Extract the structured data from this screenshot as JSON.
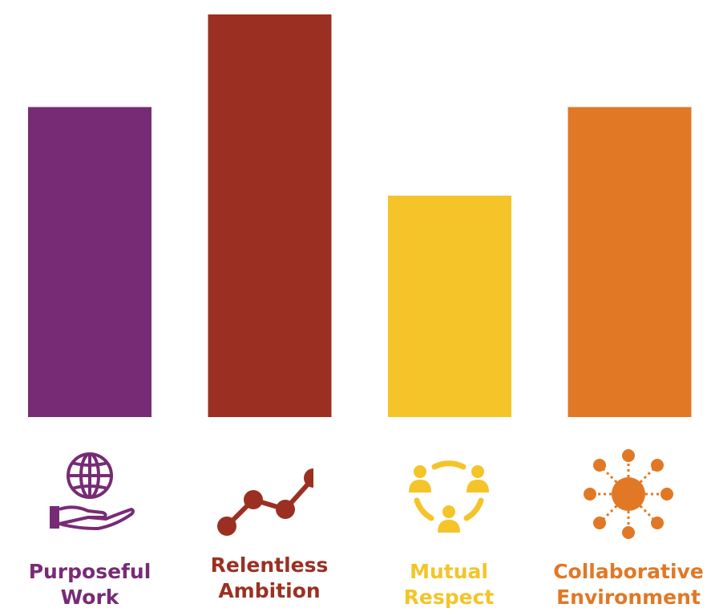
{
  "chart_data": {
    "type": "bar",
    "categories": [
      [
        "Purposeful",
        "Work"
      ],
      [
        "Relentless",
        "Ambition"
      ],
      [
        "Mutual",
        "Respect"
      ],
      [
        "Collaborative",
        "Environment"
      ]
    ],
    "values": [
      77,
      100,
      55,
      77
    ],
    "ylim": [
      0,
      100
    ],
    "colors": [
      "#782b75",
      "#9b3022",
      "#f4c428",
      "#e17826"
    ],
    "icons": [
      "globe-in-hand-icon",
      "rising-line-icon",
      "people-circle-icon",
      "network-hub-icon"
    ],
    "grid": false,
    "legend": "none"
  }
}
